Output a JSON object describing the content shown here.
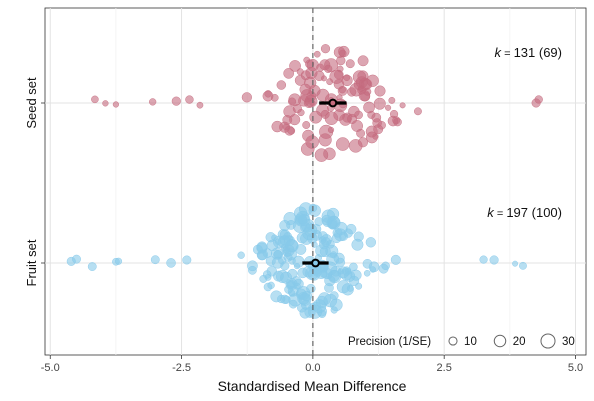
{
  "chart_data": {
    "type": "scatter",
    "subtype": "orchard-plot",
    "xlabel": "Standardised Mean Difference",
    "xlim": [
      -5.1,
      5.2
    ],
    "x_ticks": [
      -5,
      -2.5,
      0,
      2.5,
      5
    ],
    "x_tick_labels": [
      "-5.0",
      "-2.5",
      "0.0",
      "2.5",
      "5.0"
    ],
    "reference_line_x": 0,
    "grid": true,
    "groups": [
      {
        "name": "Seed set",
        "k_text": "131",
        "k_paren": "(69)",
        "color": "#c46b7e",
        "estimate": 0.38,
        "ci": [
          0.12,
          0.64
        ],
        "n_points": 131,
        "spread": 1.25,
        "extremes": [
          -4.15,
          -3.95,
          -3.75,
          -3.05,
          -2.6,
          -2.35,
          -2.15,
          4.25,
          4.3
        ]
      },
      {
        "name": "Fruit set",
        "k_text": "197",
        "k_paren": "(100)",
        "color": "#87c9ea",
        "estimate": 0.05,
        "ci": [
          -0.2,
          0.3
        ],
        "n_points": 197,
        "spread": 1.1,
        "extremes": [
          -4.6,
          -4.5,
          -4.2,
          -3.75,
          -3.7,
          -3.0,
          -2.7,
          -2.4,
          3.25,
          3.45,
          3.85,
          4.0
        ]
      }
    ],
    "legend": {
      "title": "Precision (1/SE)",
      "entries": [
        {
          "label": "10",
          "value": 10
        },
        {
          "label": "20",
          "value": 20
        },
        {
          "label": "30",
          "value": 30
        }
      ],
      "position": "bottom-right"
    }
  }
}
